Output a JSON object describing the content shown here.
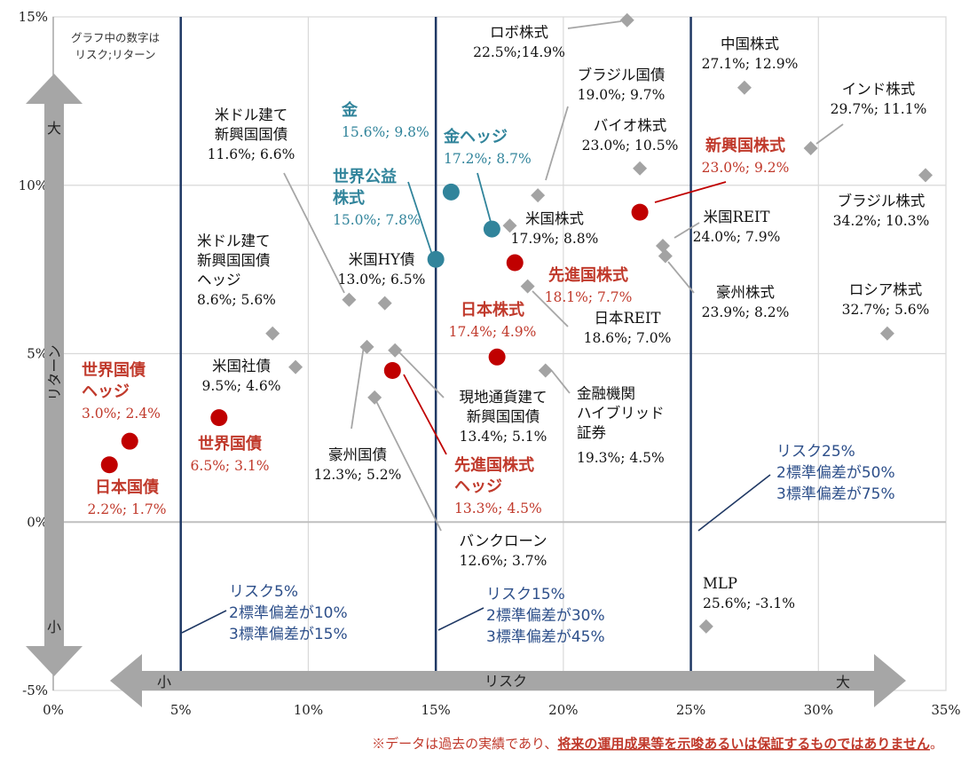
{
  "chart_data": {
    "type": "scatter",
    "xlabel": "リスク",
    "ylabel": "リターン",
    "xlim": [
      0,
      35
    ],
    "ylim": [
      -5,
      15
    ],
    "x_ticks": [
      "0%",
      "5%",
      "10%",
      "15%",
      "20%",
      "25%",
      "30%",
      "35%"
    ],
    "y_ticks": [
      "-5%",
      "0%",
      "5%",
      "10%",
      "15%"
    ],
    "note": [
      "グラフ中の数字は",
      "リスク;リターン"
    ],
    "arrow_labels": {
      "x_small": "小",
      "x_large": "大",
      "y_large": "大",
      "y_small": "小"
    },
    "risk_lines": [
      {
        "x": 5,
        "lines": [
          "リスク5%",
          "2標準偏差が10%",
          "3標準偏差が15%"
        ]
      },
      {
        "x": 15,
        "lines": [
          "リスク15%",
          "2標準偏差が30%",
          "3標準偏差が45%"
        ]
      },
      {
        "x": 25,
        "lines": [
          "リスク25%",
          "2標準偏差が50%",
          "3標準偏差が75%"
        ]
      }
    ],
    "colors": {
      "gray": "#a3a3a3",
      "red": "#c00000",
      "teal": "#31849b",
      "navy": "#1f3864",
      "red_text": "#c0392b",
      "teal_text": "#31849b"
    },
    "points": [
      {
        "name": [
          "ロボ株式"
        ],
        "value": "22.5%;14.9%",
        "x": 22.5,
        "y": 14.9,
        "style": "gray"
      },
      {
        "name": [
          "中国株式"
        ],
        "value": "27.1%; 12.9%",
        "x": 27.1,
        "y": 12.9,
        "style": "gray"
      },
      {
        "name": [
          "インド株式"
        ],
        "value": "29.7%; 11.1%",
        "x": 29.7,
        "y": 11.1,
        "style": "gray"
      },
      {
        "name": [
          "ブラジル国債"
        ],
        "value": "19.0%; 9.7%",
        "x": 19.0,
        "y": 9.7,
        "style": "gray"
      },
      {
        "name": [
          "バイオ株式"
        ],
        "value": "23.0%; 10.5%",
        "x": 23.0,
        "y": 10.5,
        "style": "gray"
      },
      {
        "name": [
          "新興国株式"
        ],
        "value": "23.0%; 9.2%",
        "x": 23.0,
        "y": 9.2,
        "style": "red"
      },
      {
        "name": [
          "ブラジル株式"
        ],
        "value": "34.2%; 10.3%",
        "x": 34.2,
        "y": 10.3,
        "style": "gray"
      },
      {
        "name": [
          "米国REIT"
        ],
        "value": "24.0%; 7.9%",
        "x": 24.0,
        "y": 7.9,
        "style": "gray"
      },
      {
        "name": [
          "豪州株式"
        ],
        "value": "23.9%; 8.2%",
        "x": 23.9,
        "y": 8.2,
        "style": "gray"
      },
      {
        "name": [
          "ロシア株式"
        ],
        "value": "32.7%; 5.6%",
        "x": 32.7,
        "y": 5.6,
        "style": "gray"
      },
      {
        "name": [
          "米国株式"
        ],
        "value": "17.9%; 8.8%",
        "x": 17.9,
        "y": 8.8,
        "style": "gray"
      },
      {
        "name": [
          "先進国株式"
        ],
        "value": "18.1%; 7.7%",
        "x": 18.1,
        "y": 7.7,
        "style": "red"
      },
      {
        "name": [
          "日本REIT"
        ],
        "value": "18.6%; 7.0%",
        "x": 18.6,
        "y": 7.0,
        "style": "gray"
      },
      {
        "name": [
          "日本株式"
        ],
        "value": "17.4%; 4.9%",
        "x": 17.4,
        "y": 4.9,
        "style": "red"
      },
      {
        "name": [
          "金融機関",
          "ハイブリッド",
          "証券"
        ],
        "value": "19.3%; 4.5%",
        "x": 19.3,
        "y": 4.5,
        "style": "gray"
      },
      {
        "name": [
          "金"
        ],
        "value": "15.6%; 9.8%",
        "x": 15.6,
        "y": 9.8,
        "style": "teal"
      },
      {
        "name": [
          "金ヘッジ"
        ],
        "value": "17.2%; 8.7%",
        "x": 17.2,
        "y": 8.7,
        "style": "teal"
      },
      {
        "name": [
          "世界公益",
          "株式"
        ],
        "value": "15.0%; 7.8%",
        "x": 15.0,
        "y": 7.8,
        "style": "teal"
      },
      {
        "name": [
          "米ドル建て",
          "新興国国債"
        ],
        "value": "11.6%; 6.6%",
        "x": 11.6,
        "y": 6.6,
        "style": "gray"
      },
      {
        "name": [
          "米国HY債"
        ],
        "value": "13.0%; 6.5%",
        "x": 13.0,
        "y": 6.5,
        "style": "gray"
      },
      {
        "name": [
          "米ドル建て",
          "新興国国債",
          "ヘッジ"
        ],
        "value": "8.6%; 5.6%",
        "x": 8.6,
        "y": 5.6,
        "style": "gray"
      },
      {
        "name": [
          "米国社債"
        ],
        "value": "9.5%; 4.6%",
        "x": 9.5,
        "y": 4.6,
        "style": "gray"
      },
      {
        "name": [
          "現地通貨建て",
          "新興国国債"
        ],
        "value": "13.4%; 5.1%",
        "x": 13.4,
        "y": 5.1,
        "style": "gray"
      },
      {
        "name": [
          "豪州国債"
        ],
        "value": "12.3%; 5.2%",
        "x": 12.3,
        "y": 5.2,
        "style": "gray"
      },
      {
        "name": [
          "先進国株式",
          "ヘッジ"
        ],
        "value": "13.3%; 4.5%",
        "x": 13.3,
        "y": 4.5,
        "style": "red"
      },
      {
        "name": [
          "世界国債",
          "ヘッジ"
        ],
        "value": "3.0%; 2.4%",
        "x": 3.0,
        "y": 2.4,
        "style": "red"
      },
      {
        "name": [
          "世界国債"
        ],
        "value": "6.5%; 3.1%",
        "x": 6.5,
        "y": 3.1,
        "style": "red"
      },
      {
        "name": [
          "日本国債"
        ],
        "value": "2.2%; 1.7%",
        "x": 2.2,
        "y": 1.7,
        "style": "red"
      },
      {
        "name": [
          "バンクローン"
        ],
        "value": "12.6%; 3.7%",
        "x": 12.6,
        "y": 3.7,
        "style": "gray"
      },
      {
        "name": [
          "MLP"
        ],
        "value": "25.6%; -3.1%",
        "x": 25.6,
        "y": -3.1,
        "style": "gray"
      }
    ],
    "disclaimer": {
      "text_normal": "※データは過去の実績であり、",
      "text_emph": "将来の運用成果等を示唆あるいは保証するものではありません",
      "text_end": "。"
    }
  }
}
